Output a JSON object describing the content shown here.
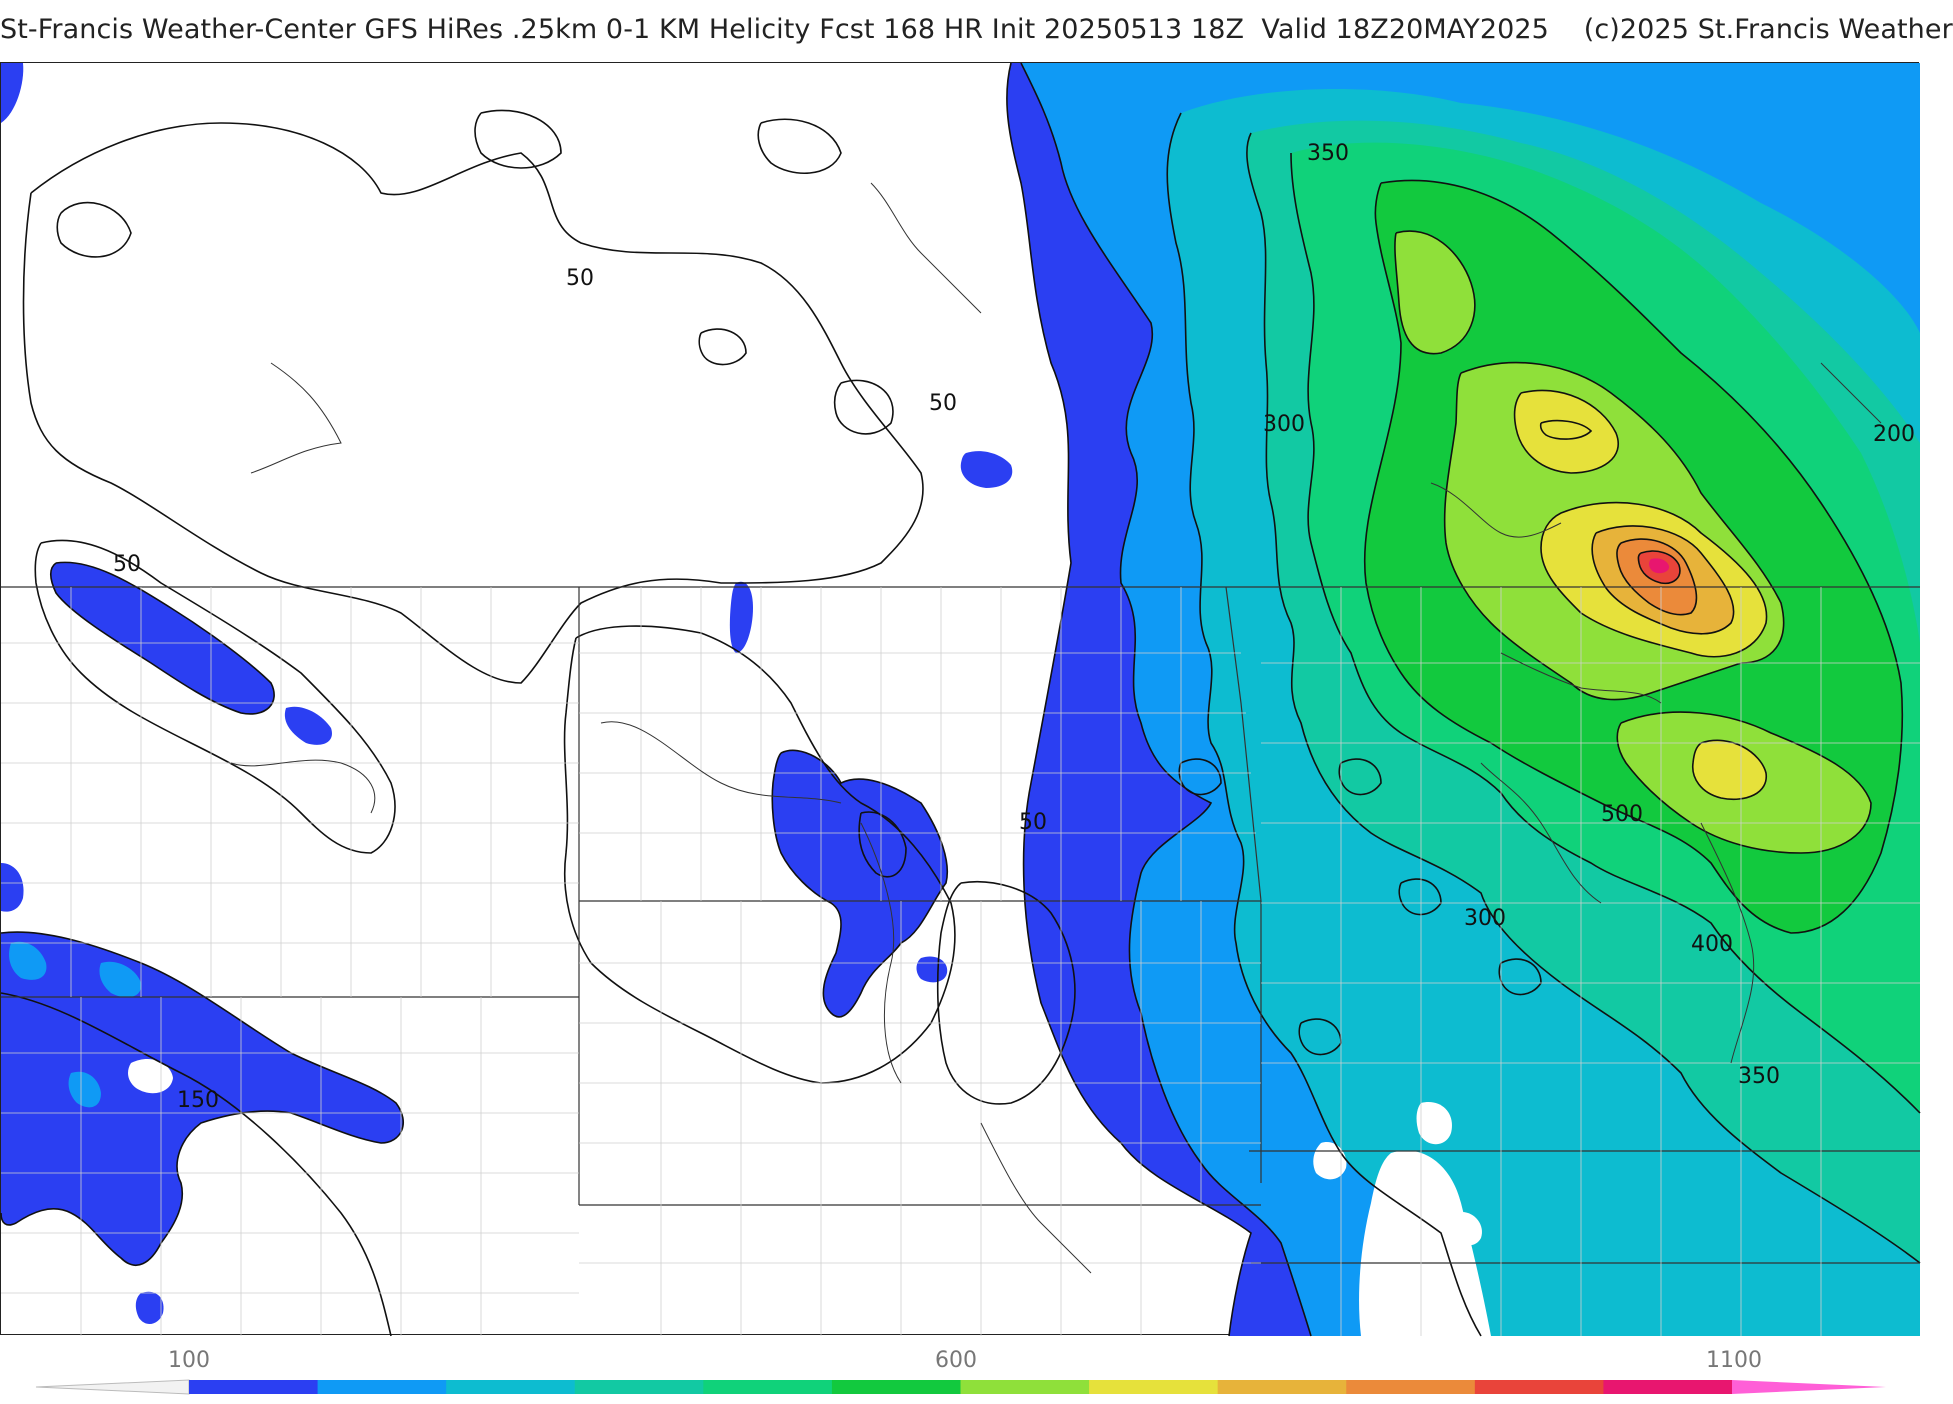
{
  "title": "St-Francis Weather-Center GFS HiRes .25km 0-1 KM Helicity Fcst 168 HR Init 20250513 18Z  Valid 18Z20MAY2025    (c)2025 St.Francis Weather",
  "contour_labels": [
    "50",
    "50",
    "50",
    "50",
    "300",
    "350",
    "200",
    "500",
    "300",
    "400",
    "350",
    "150"
  ],
  "colorbar": {
    "tick_labels": [
      "100",
      "600",
      "1100"
    ],
    "colors": [
      "#2b3ff2",
      "#0f9af5",
      "#0dbcd0",
      "#12c9a3",
      "#10d27a",
      "#12c93e",
      "#8fe03a",
      "#e6e13b",
      "#e7b33a",
      "#eb8a3a",
      "#e9443a",
      "#e8166f",
      "#ff5fd7"
    ]
  },
  "palette": {
    "helicity_100": "#2b3ff2",
    "helicity_150": "#0f9af5",
    "helicity_200": "#0dbcd0",
    "helicity_250": "#12c9a3",
    "helicity_300": "#10d27a",
    "helicity_350": "#12c93e",
    "helicity_400": "#8fe03a",
    "helicity_450": "#e6e13b",
    "helicity_500": "#e7b33a",
    "helicity_600": "#eb8a3a",
    "helicity_800": "#e9443a",
    "helicity_1000": "#e8166f"
  }
}
